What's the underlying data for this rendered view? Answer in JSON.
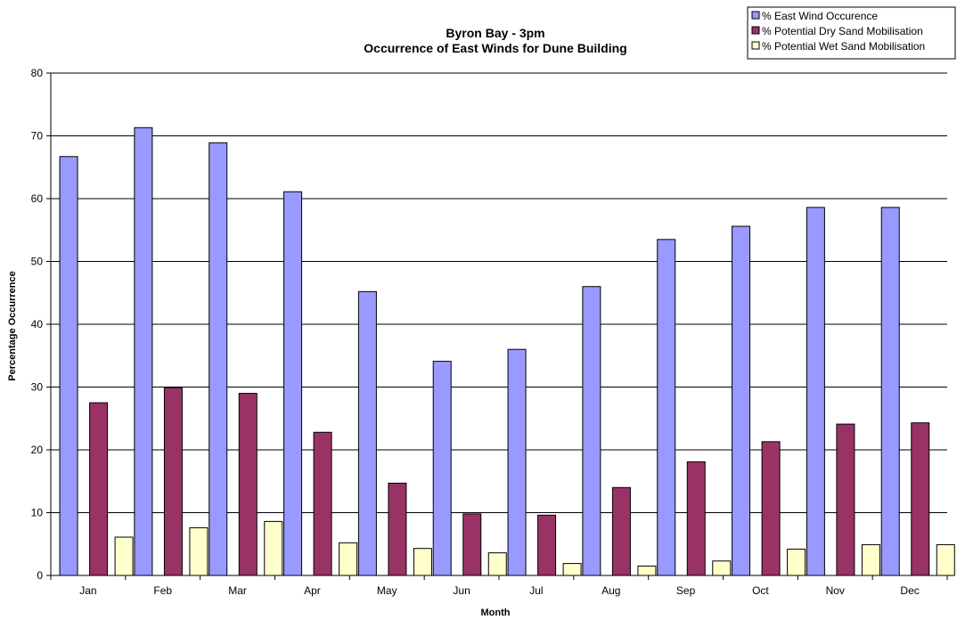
{
  "chart_data": {
    "type": "bar",
    "title": "Byron Bay - 3pm",
    "subtitle": "Occurrence of East Winds for Dune Building",
    "xlabel": "Month",
    "ylabel": "Percentage Occurrence",
    "ylim": [
      0,
      80
    ],
    "yticks": [
      0,
      10,
      20,
      30,
      40,
      50,
      60,
      70,
      80
    ],
    "grid": true,
    "legend_position": "top-right",
    "categories": [
      "Jan",
      "Feb",
      "Mar",
      "Apr",
      "May",
      "Jun",
      "Jul",
      "Aug",
      "Sep",
      "Oct",
      "Nov",
      "Dec"
    ],
    "series": [
      {
        "name": "% East Wind Occurence",
        "color": "#9999ff",
        "values": [
          66.7,
          71.3,
          68.9,
          61.1,
          45.2,
          34.1,
          36.0,
          46.0,
          53.5,
          55.6,
          58.6,
          58.6
        ]
      },
      {
        "name": "% Potential Dry Sand Mobilisation",
        "color": "#993366",
        "values": [
          27.5,
          29.9,
          29.0,
          22.8,
          14.7,
          9.8,
          9.6,
          14.0,
          18.1,
          21.3,
          24.1,
          24.3
        ]
      },
      {
        "name": "% Potential Wet Sand Mobilisation",
        "color": "#ffffcc",
        "values": [
          6.1,
          7.6,
          8.6,
          5.2,
          4.3,
          3.6,
          1.9,
          1.5,
          2.3,
          4.2,
          4.9,
          4.9
        ]
      }
    ]
  }
}
